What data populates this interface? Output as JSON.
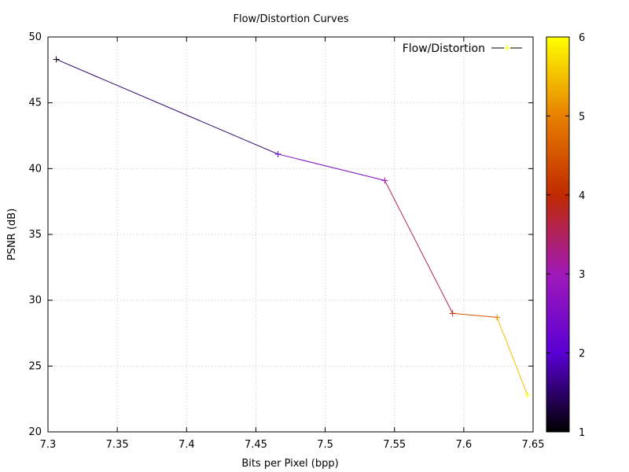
{
  "chart_data": {
    "type": "line",
    "title": "Flow/Distortion Curves",
    "xlabel": "Bits per Pixel (bpp)",
    "ylabel": "PSNR (dB)",
    "xlim": [
      7.3,
      7.65
    ],
    "ylim": [
      20,
      50
    ],
    "x_ticks": [
      "7.3",
      "7.35",
      "7.4",
      "7.45",
      "7.5",
      "7.55",
      "7.6",
      "7.65"
    ],
    "y_ticks": [
      "20",
      "25",
      "30",
      "35",
      "40",
      "45",
      "50"
    ],
    "grid": true,
    "legend_position": "top-right",
    "series": [
      {
        "name": "Flow/Distortion",
        "x": [
          7.306,
          7.466,
          7.543,
          7.592,
          7.624,
          7.646
        ],
        "y": [
          48.3,
          41.1,
          39.1,
          29.0,
          28.7,
          22.8
        ],
        "color_values": [
          1,
          2,
          3,
          4,
          5,
          6
        ]
      }
    ],
    "colorbar": {
      "range": [
        1,
        6
      ],
      "ticks": [
        "1",
        "2",
        "3",
        "4",
        "5",
        "6"
      ],
      "palette": [
        "#000000",
        "#5a00d4",
        "#a019b9",
        "#c02a00",
        "#e88000",
        "#ffff00"
      ]
    }
  }
}
